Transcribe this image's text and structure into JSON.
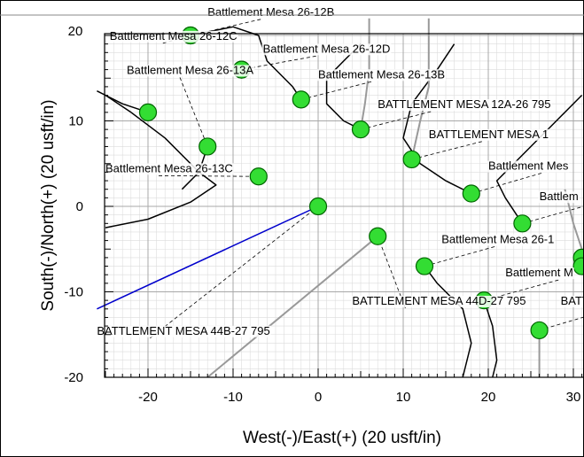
{
  "chart_data": {
    "type": "scatter",
    "xlabel": "West(-)/East(+) (20 usft/in)",
    "ylabel": "South(-)/North(+) (20 usft/in)",
    "xlim": [
      -26,
      31
    ],
    "ylim": [
      -20,
      23
    ],
    "x_ticks": [
      -20,
      -10,
      0,
      10,
      20,
      30
    ],
    "y_ticks": [
      -20,
      -10,
      0,
      10
    ],
    "y_tick_label_partial": "20",
    "grid": true,
    "colors": {
      "well_marker": "#33dd33",
      "well_outline": "#006600",
      "reference_line": "#0000cc",
      "trajectory": "#000000",
      "trajectory_light": "#999999",
      "leader": "#000000"
    },
    "wells": [
      {
        "name": "Battlement Mesa 26-12B",
        "x": -15,
        "y": 20
      },
      {
        "name": "Battlement Mesa 26-12C",
        "x": -15,
        "y": 20
      },
      {
        "name": "Battlement Mesa 26-12D",
        "x": -9,
        "y": 16
      },
      {
        "name": "Battlement Mesa 26-13A",
        "x": -9,
        "y": 16
      },
      {
        "name": "Battlement Mesa 26-13B",
        "x": -2,
        "y": 12.5
      },
      {
        "name": "BATTLEMENT MESA 12A-26 795",
        "x": 5,
        "y": 9
      },
      {
        "name": "BATTLEMENT MESA 1",
        "x": 11,
        "y": 5.5
      },
      {
        "name": "Battlement Mesa 26-13C",
        "x": -7,
        "y": 3.5
      },
      {
        "name": "Battlement Mes",
        "x": 18,
        "y": 1.5
      },
      {
        "name": "Battlem",
        "x": 24,
        "y": -2
      },
      {
        "name": "Battlement Mesa 26-1",
        "x": 31,
        "y": -6
      },
      {
        "name": "Battlement M",
        "x": 31,
        "y": -7
      },
      {
        "name": "BATTLEMENT MESA 44D-27 795",
        "x": 19.5,
        "y": -11
      },
      {
        "name": "BATTLEMENT MESA 44B-27 795",
        "x": 7,
        "y": -3.5
      },
      {
        "name": "BATT",
        "x": 26,
        "y": -14.5
      },
      {
        "name": "",
        "x": -20,
        "y": 11
      },
      {
        "name": "",
        "x": -13,
        "y": 7
      },
      {
        "name": "",
        "x": 0,
        "y": 0
      },
      {
        "name": "",
        "x": 12.5,
        "y": -7
      }
    ],
    "labels": [
      {
        "text": "Battlement Mesa 26-12B",
        "x": -13,
        "y": 22.3,
        "tx": -15,
        "ty": 20
      },
      {
        "text": "Battlement Mesa 26-12C",
        "x": -24.5,
        "y": 19.5,
        "tx": -15,
        "ty": 20
      },
      {
        "text": "Battlement Mesa 26-12D",
        "x": -6.5,
        "y": 18,
        "tx": -9,
        "ty": 16
      },
      {
        "text": "Battlement Mesa 26-13A",
        "x": -22.5,
        "y": 15.5,
        "tx": -13,
        "ty": 7
      },
      {
        "text": "Battlement Mesa 26-13B",
        "x": 0,
        "y": 15,
        "tx": -2,
        "ty": 12.5
      },
      {
        "text": "BATTLEMENT MESA 12A-26 795",
        "x": 7,
        "y": 11.5,
        "tx": 5,
        "ty": 9
      },
      {
        "text": "BATTLEMENT MESA 1",
        "x": 13,
        "y": 8,
        "tx": 11,
        "ty": 5.5
      },
      {
        "text": "Battlement Mesa 26-13C",
        "x": -25,
        "y": 4,
        "tx": -7,
        "ty": 3.5
      },
      {
        "text": "Battlement Mes",
        "x": 20,
        "y": 4.3,
        "tx": 18,
        "ty": 1.5
      },
      {
        "text": "Battlem",
        "x": 26,
        "y": 0.7,
        "tx": 24,
        "ty": -2
      },
      {
        "text": "Battlement Mesa 26-1",
        "x": 14.5,
        "y": -4.3,
        "tx": 12.5,
        "ty": -7
      },
      {
        "text": "Battlement M",
        "x": 22,
        "y": -8.2,
        "tx": 19.5,
        "ty": -11
      },
      {
        "text": "BATTLEMENT MESA 44D-27 795",
        "x": 4,
        "y": -11.5,
        "tx": 7,
        "ty": -3.5
      },
      {
        "text": "BATT",
        "x": 28.5,
        "y": -11.5,
        "tx": 26,
        "ty": -14.5
      },
      {
        "text": "BATTLEMENT MESA 44B-27 795",
        "x": -26,
        "y": -15,
        "tx": 0,
        "ty": 0
      }
    ],
    "reference_line": {
      "x": [
        0,
        -26
      ],
      "y": [
        0,
        -12
      ]
    },
    "trajectories": [
      {
        "color": "dark",
        "points": [
          [
            -25,
            -2.5
          ],
          [
            -20,
            -1.5
          ],
          [
            -15,
            0.5
          ],
          [
            -12,
            2.5
          ],
          [
            -14,
            4
          ],
          [
            -18,
            8
          ],
          [
            -22,
            11
          ],
          [
            -25,
            13
          ]
        ]
      },
      {
        "color": "dark",
        "points": [
          [
            -20,
            11
          ],
          [
            -23,
            12
          ],
          [
            -26,
            13.5
          ]
        ]
      },
      {
        "color": "dark",
        "points": [
          [
            -15,
            20
          ],
          [
            -10,
            21
          ],
          [
            -7,
            20
          ],
          [
            -6,
            17
          ],
          [
            -3,
            14
          ],
          [
            -2,
            12.5
          ]
        ]
      },
      {
        "color": "dark",
        "points": [
          [
            5,
            9
          ],
          [
            3,
            10
          ],
          [
            1,
            12
          ],
          [
            1,
            15
          ],
          [
            3,
            17
          ],
          [
            5,
            19
          ]
        ]
      },
      {
        "color": "dark",
        "points": [
          [
            18,
            1.5
          ],
          [
            15,
            3
          ],
          [
            12,
            5
          ],
          [
            10,
            8
          ],
          [
            11,
            12
          ],
          [
            14,
            16
          ],
          [
            16,
            19
          ]
        ]
      },
      {
        "color": "dark",
        "points": [
          [
            24,
            -2
          ],
          [
            22,
            1
          ],
          [
            21,
            3
          ],
          [
            24,
            6
          ],
          [
            28,
            10
          ],
          [
            31,
            13
          ]
        ]
      },
      {
        "color": "dark",
        "points": [
          [
            12.5,
            -7
          ],
          [
            14,
            -9
          ],
          [
            17,
            -12
          ],
          [
            18,
            -16
          ],
          [
            17,
            -20
          ]
        ]
      },
      {
        "color": "dark",
        "points": [
          [
            19.5,
            -11
          ],
          [
            20.5,
            -14
          ],
          [
            21,
            -18
          ],
          [
            20.5,
            -20
          ]
        ]
      },
      {
        "color": "dark",
        "points": [
          [
            -13,
            7
          ],
          [
            -14,
            4
          ],
          [
            -16,
            2
          ]
        ]
      },
      {
        "color": "light",
        "points": [
          [
            11,
            5.5
          ],
          [
            12,
            10
          ],
          [
            13,
            14
          ],
          [
            13,
            22
          ]
        ]
      },
      {
        "color": "light",
        "points": [
          [
            5,
            9
          ],
          [
            5.5,
            12
          ],
          [
            6,
            16
          ],
          [
            6,
            22
          ]
        ]
      },
      {
        "color": "light",
        "points": [
          [
            7,
            -3.5
          ],
          [
            -13,
            -20
          ]
        ]
      },
      {
        "color": "light",
        "points": [
          [
            26,
            -14.5
          ],
          [
            26,
            -20
          ]
        ]
      },
      {
        "color": "light",
        "points": [
          [
            31,
            -5
          ],
          [
            30,
            -2
          ],
          [
            29,
            2
          ]
        ]
      }
    ]
  }
}
